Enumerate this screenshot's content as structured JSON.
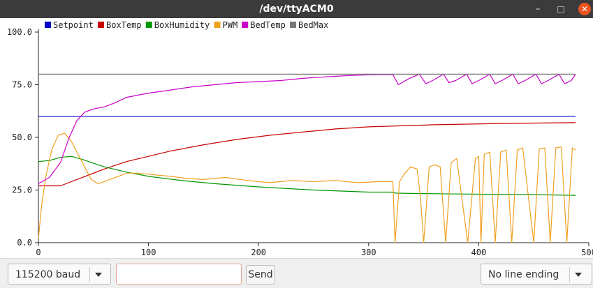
{
  "window": {
    "title": "/dev/ttyACM0",
    "minimize_icon": "minimize-icon",
    "maximize_icon": "maximize-icon",
    "close_icon": "close-icon"
  },
  "chart_data": {
    "type": "line",
    "title": "",
    "xlabel": "",
    "ylabel": "",
    "xlim": [
      0,
      500
    ],
    "ylim": [
      0,
      100
    ],
    "x_ticks": [
      "0",
      "100",
      "200",
      "300",
      "400",
      "500"
    ],
    "y_ticks": [
      "0.0",
      "25.0",
      "50.0",
      "75.0",
      "100.0"
    ],
    "grid": false,
    "legend_position": "top-left",
    "series": [
      {
        "name": "Setpoint",
        "color": "#0000c8",
        "x": [
          0,
          488
        ],
        "values": [
          60,
          60
        ]
      },
      {
        "name": "BoxTemp",
        "color": "#c80000",
        "x": [
          0,
          20,
          40,
          60,
          80,
          100,
          120,
          150,
          180,
          210,
          240,
          270,
          300,
          330,
          360,
          390,
          420,
          450,
          488
        ],
        "values": [
          27,
          27,
          31,
          35,
          38.5,
          41,
          43.5,
          46.5,
          49,
          51,
          52.5,
          54,
          55,
          55.5,
          56,
          56.3,
          56.6,
          56.8,
          57
        ]
      },
      {
        "name": "BoxHumidity",
        "color": "#009600",
        "x": [
          0,
          10,
          20,
          30,
          40,
          60,
          80,
          100,
          130,
          160,
          200,
          250,
          300,
          320,
          325,
          350,
          400,
          450,
          488
        ],
        "values": [
          38.5,
          39,
          40.5,
          41,
          39.5,
          36,
          33.5,
          31.5,
          29.5,
          28,
          26.5,
          25,
          24,
          24,
          23.5,
          23.3,
          23,
          22.8,
          22.5
        ]
      },
      {
        "name": "PWM",
        "color": "#f0a020",
        "x": [
          0,
          3,
          7,
          12,
          18,
          24,
          30,
          36,
          42,
          48,
          54,
          60,
          70,
          80,
          90,
          100,
          110,
          120,
          135,
          150,
          170,
          190,
          210,
          230,
          250,
          270,
          290,
          310,
          322,
          324,
          328,
          333,
          338,
          344,
          347,
          350,
          355,
          360,
          365,
          370,
          375,
          380,
          390,
          397,
          400,
          402,
          405,
          410,
          415,
          420,
          425,
          430,
          435,
          440,
          450,
          455,
          460,
          465,
          470,
          475,
          480,
          485,
          488
        ],
        "values": [
          2,
          18,
          32,
          44,
          51,
          52,
          48,
          42,
          36,
          30,
          28,
          29,
          31,
          33,
          33,
          32.5,
          32,
          31.5,
          30.5,
          30,
          31,
          29.5,
          28.5,
          29.5,
          29,
          29.5,
          28.5,
          29,
          29,
          0,
          29,
          33,
          36,
          35,
          22,
          0,
          36,
          37,
          36,
          0,
          38,
          40,
          0,
          40,
          41,
          0,
          42,
          43,
          0,
          43,
          44,
          0,
          44,
          45,
          0,
          44.5,
          45,
          0,
          45,
          45.5,
          0,
          45,
          44
        ]
      },
      {
        "name": "BedTemp",
        "color": "#c800c8",
        "x": [
          0,
          10,
          20,
          28,
          35,
          42,
          50,
          60,
          70,
          80,
          90,
          100,
          120,
          140,
          160,
          180,
          200,
          220,
          240,
          260,
          280,
          300,
          310,
          322,
          327,
          337,
          346,
          352,
          358,
          368,
          373,
          379,
          389,
          394,
          400,
          410,
          415,
          421,
          431,
          436,
          442,
          452,
          457,
          463,
          473,
          478,
          484,
          488
        ],
        "values": [
          28,
          31,
          38,
          50,
          58,
          62,
          63.5,
          64.5,
          66.5,
          69,
          70,
          71,
          72.5,
          74,
          75,
          76,
          76.5,
          77,
          78,
          78.7,
          79.3,
          79.7,
          79.8,
          79.8,
          75,
          78,
          80,
          75.5,
          77,
          80,
          76,
          77,
          80,
          75.5,
          77,
          80,
          75.5,
          77,
          80,
          75.5,
          77,
          80,
          75.5,
          77,
          80,
          75.5,
          77,
          80
        ]
      },
      {
        "name": "BedMax",
        "color": "#787878",
        "x": [
          0,
          488
        ],
        "values": [
          80,
          80
        ]
      }
    ]
  },
  "controls": {
    "baud_value": "115200 baud",
    "message_value": "",
    "send_label": "Send",
    "line_ending_value": "No line ending",
    "dropdown_icon": "chevron-down-icon"
  }
}
